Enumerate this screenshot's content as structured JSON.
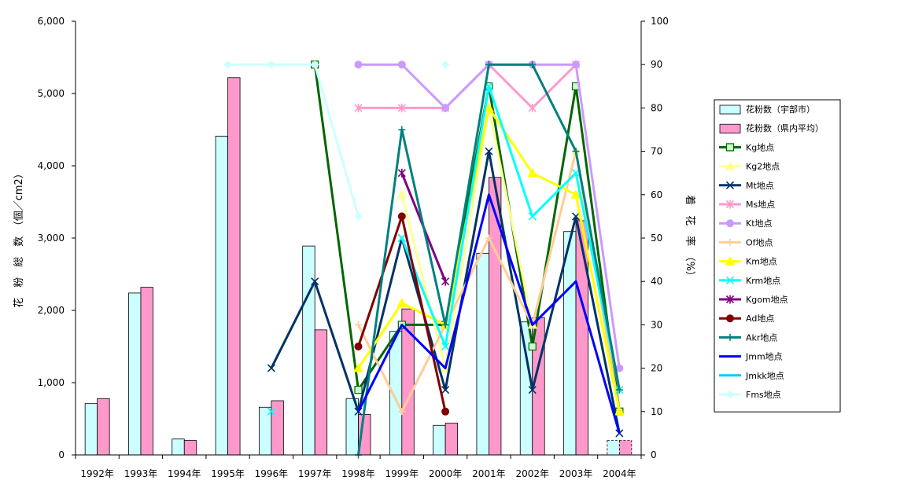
{
  "chart_data": {
    "type": "bar",
    "categories": [
      "1992年",
      "1993年",
      "1994年",
      "1995年",
      "1996年",
      "1997年",
      "1998年",
      "1999年",
      "2000年",
      "2001年",
      "2002年",
      "2003年",
      "2004年"
    ],
    "ylabel_left": "花　粉　総　数　（個／cm2）",
    "ylabel_right": "着　花　率　（%）",
    "ylim_left": [
      0,
      6000
    ],
    "ylim_right": [
      0,
      100
    ],
    "left_ticks": [
      "0",
      "1,000",
      "2,000",
      "3,000",
      "4,000",
      "5,000",
      "6,000"
    ],
    "right_ticks": [
      "0",
      "10",
      "20",
      "30",
      "40",
      "50",
      "60",
      "70",
      "80",
      "90",
      "100"
    ],
    "grid": false,
    "legend_position": "right",
    "bar_series": [
      {
        "name": "花粉数（宇部市）",
        "color": "#ccffff",
        "values": [
          710,
          2240,
          220,
          4410,
          660,
          2890,
          780,
          1710,
          410,
          2790,
          1840,
          3090,
          200
        ],
        "dashed_last": true
      },
      {
        "name": "花粉数（県内平均）",
        "color": "#ff99cc",
        "values": [
          780,
          2320,
          200,
          5220,
          750,
          1730,
          560,
          2020,
          440,
          3840,
          1900,
          3240,
          200
        ],
        "dashed_last": true
      }
    ],
    "line_series": [
      {
        "name": "Kg地点",
        "color": "#006600",
        "marker": "square",
        "values": [
          null,
          null,
          null,
          null,
          null,
          90,
          15,
          30,
          30,
          85,
          25,
          85,
          10
        ]
      },
      {
        "name": "Kg2地点",
        "color": "#ffff99",
        "marker": "triangle",
        "values": [
          null,
          null,
          null,
          null,
          null,
          null,
          null,
          60,
          20,
          80,
          30,
          70,
          10
        ]
      },
      {
        "name": "Mt地点",
        "color": "#003366",
        "marker": "x",
        "values": [
          null,
          null,
          null,
          null,
          20,
          40,
          10,
          50,
          15,
          70,
          15,
          55,
          5
        ]
      },
      {
        "name": "Ms地点",
        "color": "#ff99cc",
        "marker": "star",
        "values": [
          null,
          null,
          null,
          null,
          null,
          null,
          80,
          80,
          80,
          90,
          80,
          90,
          null
        ]
      },
      {
        "name": "Kt地点",
        "color": "#cc99ff",
        "marker": "circle",
        "values": [
          null,
          null,
          null,
          null,
          null,
          null,
          90,
          90,
          80,
          90,
          90,
          90,
          20
        ]
      },
      {
        "name": "Of地点",
        "color": "#ffcc99",
        "marker": "plus",
        "values": [
          null,
          null,
          null,
          null,
          null,
          null,
          30,
          10,
          30,
          50,
          30,
          70,
          10
        ]
      },
      {
        "name": "Km地点",
        "color": "#ffff00",
        "marker": "triangle",
        "values": [
          null,
          null,
          null,
          null,
          null,
          null,
          20,
          35,
          30,
          80,
          65,
          60,
          10
        ]
      },
      {
        "name": "Krm地点",
        "color": "#00ffff",
        "marker": "x",
        "values": [
          null,
          null,
          null,
          null,
          10,
          null,
          null,
          50,
          25,
          85,
          55,
          65,
          15
        ]
      },
      {
        "name": "Kgom地点",
        "color": "#800080",
        "marker": "star",
        "values": [
          null,
          null,
          null,
          null,
          null,
          null,
          null,
          65,
          40,
          null,
          null,
          null,
          null
        ]
      },
      {
        "name": "Ad地点",
        "color": "#800000",
        "marker": "circle",
        "values": [
          null,
          null,
          null,
          null,
          null,
          null,
          25,
          55,
          10,
          null,
          null,
          null,
          null
        ]
      },
      {
        "name": "Akr地点",
        "color": "#008080",
        "marker": "plus",
        "values": [
          null,
          null,
          null,
          null,
          null,
          null,
          0,
          75,
          30,
          90,
          90,
          70,
          15
        ]
      },
      {
        "name": "Jmm地点",
        "color": "#0000ff",
        "marker": "none",
        "values": [
          null,
          null,
          null,
          null,
          null,
          null,
          10,
          30,
          20,
          60,
          30,
          40,
          5
        ]
      },
      {
        "name": "Jmkk地点",
        "color": "#00ccff",
        "marker": "none",
        "values": [
          null,
          null,
          null,
          null,
          null,
          null,
          null,
          null,
          null,
          null,
          null,
          null,
          null
        ]
      },
      {
        "name": "Fms地点",
        "color": "#ccffff",
        "marker": "diamond",
        "values": [
          null,
          null,
          null,
          90,
          90,
          90,
          55,
          null,
          90,
          null,
          null,
          null,
          null
        ]
      }
    ]
  }
}
